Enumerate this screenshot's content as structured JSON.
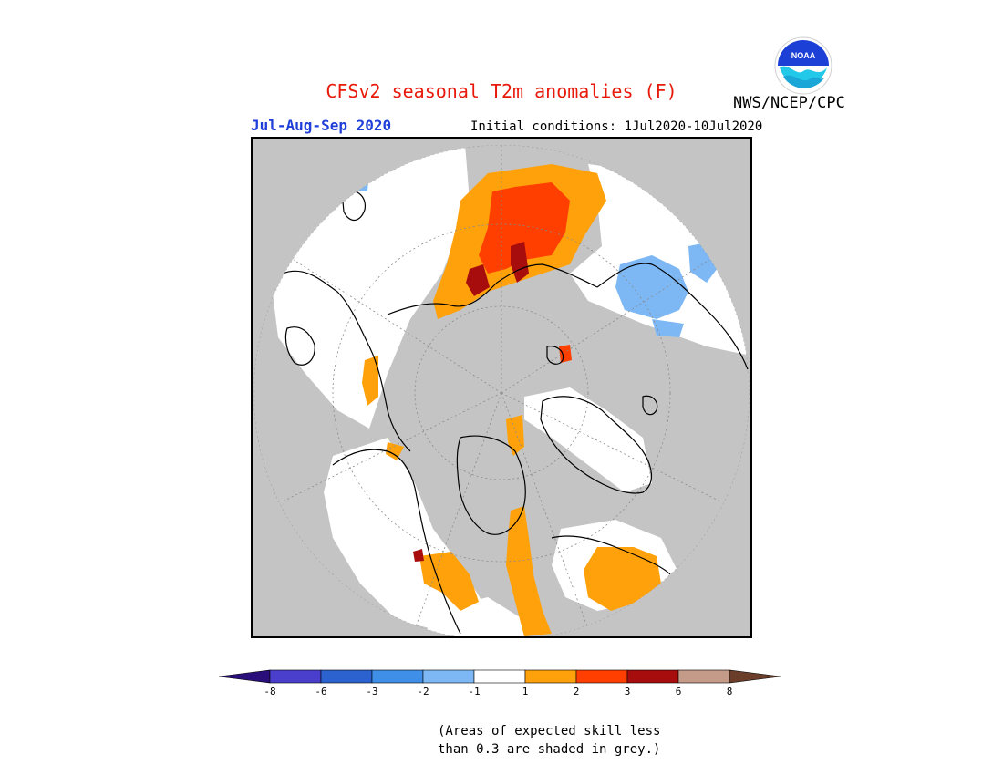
{
  "title": "CFSv2 seasonal T2m anomalies (F)",
  "agency": "NWS/NCEP/CPC",
  "logo_text": "NOAA",
  "period": "Jul-Aug-Sep 2020",
  "initial_conditions": "Initial conditions: 1Jul2020-10Jul2020",
  "colors": {
    "title": "#e8190a",
    "period": "#1f3fd8",
    "grey_mask": "#c4c4c4",
    "frame": "#000000"
  },
  "legend": {
    "bins": [
      {
        "range": "< -8",
        "color": "#2a0f7a"
      },
      {
        "range": "-8 to -6",
        "color": "#4a3fcc"
      },
      {
        "range": "-6 to -3",
        "color": "#2c62d0"
      },
      {
        "range": "-3 to -2",
        "color": "#3f8ee8"
      },
      {
        "range": "-2 to -1",
        "color": "#7db8f5"
      },
      {
        "range": "-1 to 1",
        "color": "#ffffff"
      },
      {
        "range": "1 to 2",
        "color": "#ffa10a"
      },
      {
        "range": "2 to 3",
        "color": "#ff3f00"
      },
      {
        "range": "3 to 6",
        "color": "#a80d0d"
      },
      {
        "range": "6 to 8",
        "color": "#c49a88"
      },
      {
        "range": "> 8",
        "color": "#6b3e2a"
      }
    ],
    "tick_labels": [
      "-8",
      "-6",
      "-3",
      "-2",
      "-1",
      "1",
      "2",
      "3",
      "6",
      "8"
    ]
  },
  "note_line1": "(Areas of expected skill less",
  "note_line2": "than 0.3 are shaded in grey.)"
}
